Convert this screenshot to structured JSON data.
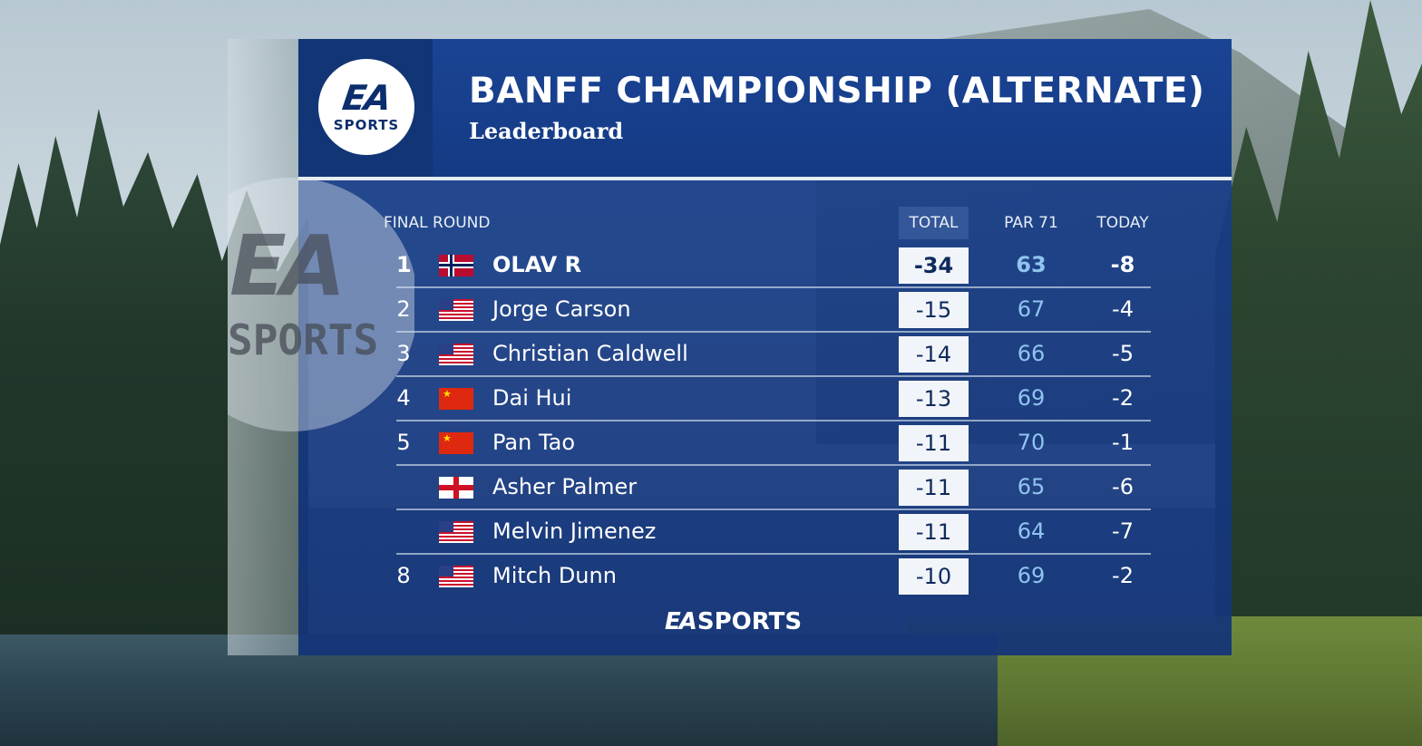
{
  "header": {
    "logo_ea": "EA",
    "logo_sports": "SPORTS",
    "title": "BANFF CHAMPIONSHIP (ALTERNATE)",
    "subtitle": "Leaderboard"
  },
  "watermark": {
    "ea": "EA",
    "sports": "SPORTS"
  },
  "columns": {
    "round": "FINAL ROUND",
    "total": "TOTAL",
    "par": "PAR 71",
    "today": "TODAY"
  },
  "rows": [
    {
      "pos": "1",
      "flag": "norway-flag-icon",
      "name": "OLAV R",
      "total": "-34",
      "par": "63",
      "today": "-8"
    },
    {
      "pos": "2",
      "flag": "usa-flag-icon",
      "name": "Jorge Carson",
      "total": "-15",
      "par": "67",
      "today": "-4"
    },
    {
      "pos": "3",
      "flag": "usa-flag-icon",
      "name": "Christian Caldwell",
      "total": "-14",
      "par": "66",
      "today": "-5"
    },
    {
      "pos": "4",
      "flag": "china-flag-icon",
      "name": "Dai Hui",
      "total": "-13",
      "par": "69",
      "today": "-2"
    },
    {
      "pos": "5",
      "flag": "china-flag-icon",
      "name": "Pan Tao",
      "total": "-11",
      "par": "70",
      "today": "-1"
    },
    {
      "pos": "",
      "flag": "england-flag-icon",
      "name": "Asher Palmer",
      "total": "-11",
      "par": "65",
      "today": "-6"
    },
    {
      "pos": "",
      "flag": "usa-flag-icon",
      "name": "Melvin Jimenez",
      "total": "-11",
      "par": "64",
      "today": "-7"
    },
    {
      "pos": "8",
      "flag": "usa-flag-icon",
      "name": "Mitch Dunn",
      "total": "-10",
      "par": "69",
      "today": "-2"
    }
  ],
  "footer": {
    "ea": "EA",
    "sports": "SPORTS"
  },
  "colors": {
    "panel_blue": "#1a4494",
    "par_text": "#8fc4f0",
    "total_box": "#f1f4f8"
  }
}
